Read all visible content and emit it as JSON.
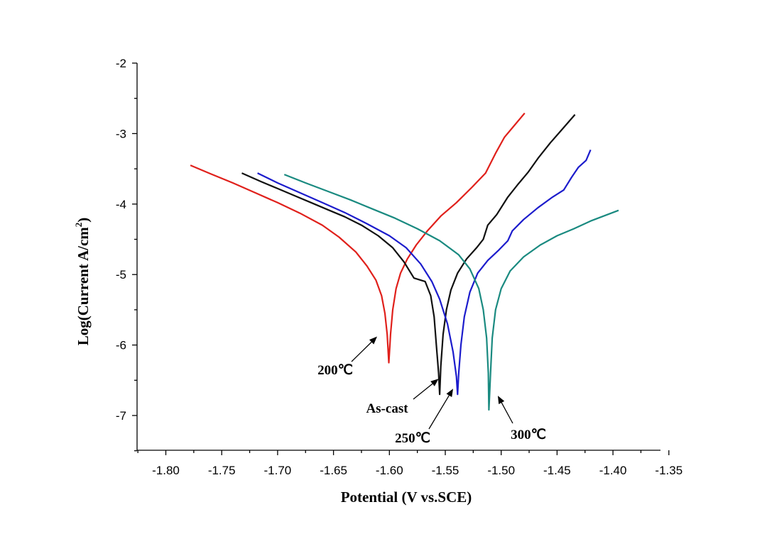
{
  "chart_data": {
    "type": "line",
    "title": "",
    "xlabel": "Potential (V vs.SCE)",
    "ylabel_main": "Log(Current  A/cm",
    "ylabel_sup": "2",
    "ylabel_close": ")",
    "xlim": [
      -1.83,
      -1.35
    ],
    "ylim": [
      -7.5,
      -2
    ],
    "xticks": [
      -1.8,
      -1.75,
      -1.7,
      -1.65,
      -1.6,
      -1.55,
      -1.5,
      -1.45,
      -1.4,
      -1.35
    ],
    "xtick_labels": [
      "-1.80",
      "-1.75",
      "-1.70",
      "-1.65",
      "-1.60",
      "-1.55",
      "-1.50",
      "-1.45",
      "-1.40",
      "-1.35"
    ],
    "yticks": [
      -2,
      -3,
      -4,
      -5,
      -6,
      -7
    ],
    "ytick_labels": [
      "-2",
      "-3",
      "-4",
      "-5",
      "-6",
      "-7"
    ],
    "series": [
      {
        "name": "200℃",
        "color": "#e0201b",
        "points": [
          [
            -1.778,
            -3.45
          ],
          [
            -1.76,
            -3.57
          ],
          [
            -1.74,
            -3.7
          ],
          [
            -1.72,
            -3.84
          ],
          [
            -1.7,
            -3.98
          ],
          [
            -1.68,
            -4.13
          ],
          [
            -1.66,
            -4.3
          ],
          [
            -1.645,
            -4.47
          ],
          [
            -1.63,
            -4.68
          ],
          [
            -1.62,
            -4.88
          ],
          [
            -1.612,
            -5.08
          ],
          [
            -1.607,
            -5.3
          ],
          [
            -1.604,
            -5.55
          ],
          [
            -1.602,
            -5.85
          ],
          [
            -1.6005,
            -6.25
          ],
          [
            -1.599,
            -5.85
          ],
          [
            -1.597,
            -5.5
          ],
          [
            -1.594,
            -5.2
          ],
          [
            -1.59,
            -4.98
          ],
          [
            -1.584,
            -4.78
          ],
          [
            -1.576,
            -4.58
          ],
          [
            -1.566,
            -4.38
          ],
          [
            -1.554,
            -4.17
          ],
          [
            -1.54,
            -3.98
          ],
          [
            -1.526,
            -3.76
          ],
          [
            -1.514,
            -3.56
          ],
          [
            -1.505,
            -3.28
          ],
          [
            -1.497,
            -3.05
          ],
          [
            -1.488,
            -2.88
          ],
          [
            -1.479,
            -2.71
          ]
        ]
      },
      {
        "name": "As-cast",
        "color": "#111111",
        "points": [
          [
            -1.732,
            -3.56
          ],
          [
            -1.715,
            -3.68
          ],
          [
            -1.7,
            -3.78
          ],
          [
            -1.685,
            -3.88
          ],
          [
            -1.67,
            -3.98
          ],
          [
            -1.655,
            -4.08
          ],
          [
            -1.64,
            -4.18
          ],
          [
            -1.625,
            -4.3
          ],
          [
            -1.61,
            -4.45
          ],
          [
            -1.597,
            -4.62
          ],
          [
            -1.587,
            -4.82
          ],
          [
            -1.578,
            -5.05
          ],
          [
            -1.568,
            -5.1
          ],
          [
            -1.563,
            -5.3
          ],
          [
            -1.56,
            -5.6
          ],
          [
            -1.558,
            -6.0
          ],
          [
            -1.556,
            -6.4
          ],
          [
            -1.555,
            -6.7
          ],
          [
            -1.554,
            -6.3
          ],
          [
            -1.552,
            -5.85
          ],
          [
            -1.549,
            -5.5
          ],
          [
            -1.545,
            -5.22
          ],
          [
            -1.539,
            -4.98
          ],
          [
            -1.531,
            -4.78
          ],
          [
            -1.522,
            -4.62
          ],
          [
            -1.516,
            -4.5
          ],
          [
            -1.512,
            -4.3
          ],
          [
            -1.504,
            -4.15
          ],
          [
            -1.494,
            -3.9
          ],
          [
            -1.485,
            -3.72
          ],
          [
            -1.476,
            -3.55
          ],
          [
            -1.467,
            -3.35
          ],
          [
            -1.456,
            -3.13
          ],
          [
            -1.446,
            -2.95
          ],
          [
            -1.434,
            -2.73
          ]
        ]
      },
      {
        "name": "250℃",
        "color": "#1c1ccc",
        "points": [
          [
            -1.718,
            -3.56
          ],
          [
            -1.7,
            -3.7
          ],
          [
            -1.68,
            -3.84
          ],
          [
            -1.66,
            -3.98
          ],
          [
            -1.64,
            -4.12
          ],
          [
            -1.62,
            -4.28
          ],
          [
            -1.6,
            -4.45
          ],
          [
            -1.585,
            -4.62
          ],
          [
            -1.572,
            -4.85
          ],
          [
            -1.562,
            -5.1
          ],
          [
            -1.555,
            -5.35
          ],
          [
            -1.548,
            -5.7
          ],
          [
            -1.543,
            -6.1
          ],
          [
            -1.54,
            -6.45
          ],
          [
            -1.539,
            -6.7
          ],
          [
            -1.538,
            -6.4
          ],
          [
            -1.536,
            -6.0
          ],
          [
            -1.533,
            -5.6
          ],
          [
            -1.528,
            -5.25
          ],
          [
            -1.521,
            -4.98
          ],
          [
            -1.512,
            -4.8
          ],
          [
            -1.502,
            -4.65
          ],
          [
            -1.494,
            -4.52
          ],
          [
            -1.49,
            -4.38
          ],
          [
            -1.48,
            -4.22
          ],
          [
            -1.467,
            -4.05
          ],
          [
            -1.454,
            -3.9
          ],
          [
            -1.444,
            -3.8
          ],
          [
            -1.437,
            -3.62
          ],
          [
            -1.431,
            -3.48
          ],
          [
            -1.424,
            -3.38
          ],
          [
            -1.42,
            -3.23
          ]
        ]
      },
      {
        "name": "300℃",
        "color": "#1a8a80",
        "points": [
          [
            -1.694,
            -3.58
          ],
          [
            -1.675,
            -3.7
          ],
          [
            -1.655,
            -3.82
          ],
          [
            -1.635,
            -3.94
          ],
          [
            -1.615,
            -4.07
          ],
          [
            -1.595,
            -4.2
          ],
          [
            -1.575,
            -4.35
          ],
          [
            -1.555,
            -4.52
          ],
          [
            -1.538,
            -4.72
          ],
          [
            -1.528,
            -4.92
          ],
          [
            -1.52,
            -5.2
          ],
          [
            -1.516,
            -5.5
          ],
          [
            -1.513,
            -5.9
          ],
          [
            -1.5115,
            -6.4
          ],
          [
            -1.511,
            -6.92
          ],
          [
            -1.5095,
            -6.4
          ],
          [
            -1.508,
            -5.9
          ],
          [
            -1.505,
            -5.5
          ],
          [
            -1.5,
            -5.2
          ],
          [
            -1.492,
            -4.95
          ],
          [
            -1.48,
            -4.75
          ],
          [
            -1.465,
            -4.58
          ],
          [
            -1.45,
            -4.45
          ],
          [
            -1.435,
            -4.35
          ],
          [
            -1.42,
            -4.24
          ],
          [
            -1.405,
            -4.15
          ],
          [
            -1.395,
            -4.09
          ]
        ]
      }
    ],
    "annotations": [
      {
        "text": "200℃",
        "series": "200℃",
        "tip": [
          -1.611,
          -5.88
        ]
      },
      {
        "text": "As-cast",
        "series": "As-cast",
        "tip": [
          -1.556,
          -6.48
        ]
      },
      {
        "text": "250℃",
        "series": "250℃",
        "tip": [
          -1.543,
          -6.62
        ]
      },
      {
        "text": "300℃",
        "series": "300℃",
        "tip": [
          -1.503,
          -6.72
        ]
      }
    ]
  }
}
